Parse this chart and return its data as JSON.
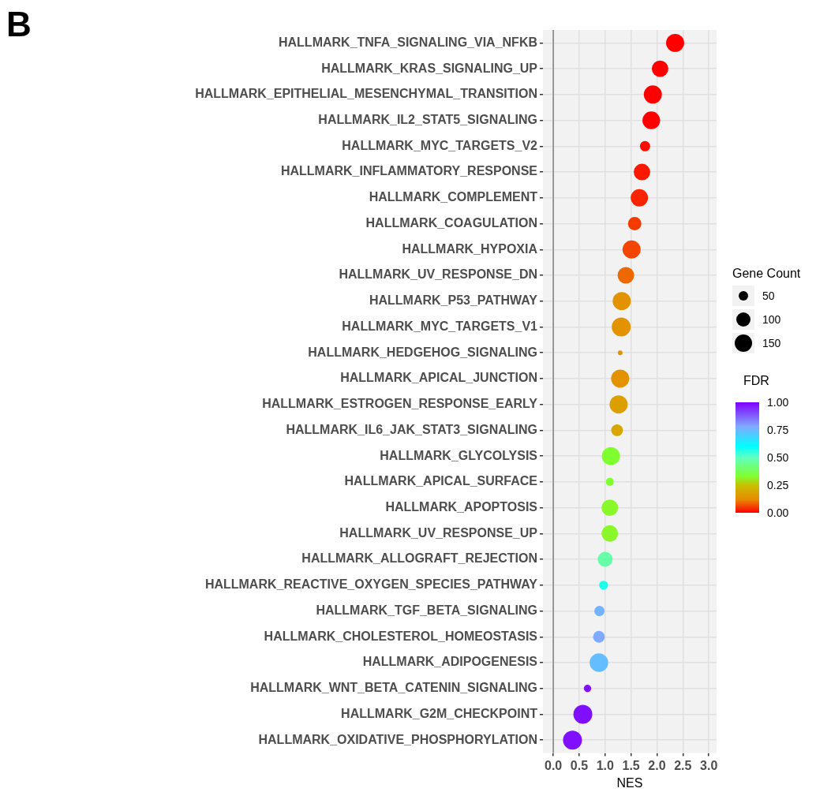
{
  "chart_data": {
    "type": "bubble",
    "annotations": [
      "B"
    ],
    "xlabel": "NES",
    "legend_title": "Gene Count",
    "clabel": "FDR",
    "categories": [
      "HALLMARK_TNFA_SIGNALING_VIA_NFKB",
      "HALLMARK_KRAS_SIGNALING_UP",
      "HALLMARK_EPITHELIAL_MESENCHYMAL_TRANSITION",
      "HALLMARK_IL2_STAT5_SIGNALING",
      "HALLMARK_MYC_TARGETS_V2",
      "HALLMARK_INFLAMMATORY_RESPONSE",
      "HALLMARK_COMPLEMENT",
      "HALLMARK_COAGULATION",
      "HALLMARK_HYPOXIA",
      "HALLMARK_UV_RESPONSE_DN",
      "HALLMARK_P53_PATHWAY",
      "HALLMARK_MYC_TARGETS_V1",
      "HALLMARK_HEDGEHOG_SIGNALING",
      "HALLMARK_APICAL_JUNCTION",
      "HALLMARK_ESTROGEN_RESPONSE_EARLY",
      "HALLMARK_IL6_JAK_STAT3_SIGNALING",
      "HALLMARK_GLYCOLYSIS",
      "HALLMARK_APICAL_SURFACE",
      "HALLMARK_APOPTOSIS",
      "HALLMARK_UV_RESPONSE_UP",
      "HALLMARK_ALLOGRAFT_REJECTION",
      "HALLMARK_REACTIVE_OXYGEN_SPECIES_PATHWAY",
      "HALLMARK_TGF_BETA_SIGNALING",
      "HALLMARK_CHOLESTEROL_HOMEOSTASIS",
      "HALLMARK_ADIPOGENESIS",
      "HALLMARK_WNT_BETA_CATENIN_SIGNALING",
      "HALLMARK_G2M_CHECKPOINT",
      "HALLMARK_OXIDATIVE_PHOSPHORYLATION"
    ],
    "values": [
      2.35,
      2.06,
      1.92,
      1.89,
      1.77,
      1.71,
      1.66,
      1.57,
      1.51,
      1.4,
      1.32,
      1.31,
      1.29,
      1.29,
      1.26,
      1.23,
      1.11,
      1.09,
      1.09,
      1.09,
      1.0,
      0.97,
      0.89,
      0.88,
      0.88,
      0.66,
      0.57,
      0.37
    ],
    "sizes": [
      163,
      136,
      163,
      156,
      52,
      136,
      149,
      89,
      163,
      136,
      163,
      178,
      11,
      163,
      163,
      69,
      163,
      31,
      136,
      136,
      111,
      40,
      52,
      69,
      172,
      27,
      178,
      178
    ],
    "cvalues": [
      0,
      0,
      0,
      0,
      0.01,
      0.02,
      0.03,
      0.05,
      0.06,
      0.09,
      0.14,
      0.14,
      0.14,
      0.14,
      0.17,
      0.19,
      0.33,
      0.33,
      0.32,
      0.32,
      0.47,
      0.57,
      0.76,
      0.78,
      0.74,
      0.98,
      0.98,
      0.98
    ],
    "size_legend": [
      {
        "value": 50,
        "label": "50"
      },
      {
        "value": 100,
        "label": "100"
      },
      {
        "value": 150,
        "label": "150"
      }
    ],
    "orientation": "horizontal",
    "clim": [
      0,
      1
    ],
    "cticks": [
      {
        "value": 0,
        "label": "0.00"
      },
      {
        "value": 0.25,
        "label": "0.25"
      },
      {
        "value": 0.5,
        "label": "0.50"
      },
      {
        "value": 0.75,
        "label": "0.75"
      },
      {
        "value": 1,
        "label": "1.00"
      }
    ],
    "xlim": [
      -0.2,
      3.15
    ],
    "xticks": [
      {
        "value": 0,
        "label": "0.0"
      },
      {
        "value": 0.5,
        "label": "0.5"
      },
      {
        "value": 1,
        "label": "1.0"
      },
      {
        "value": 1.5,
        "label": "1.5"
      },
      {
        "value": 2,
        "label": "2.0"
      },
      {
        "value": 2.5,
        "label": "2.5"
      },
      {
        "value": 3,
        "label": "3.0"
      }
    ],
    "ref_lines": [
      {
        "axis": "x",
        "value": 0,
        "color": "#808080"
      }
    ],
    "grid": true
  }
}
